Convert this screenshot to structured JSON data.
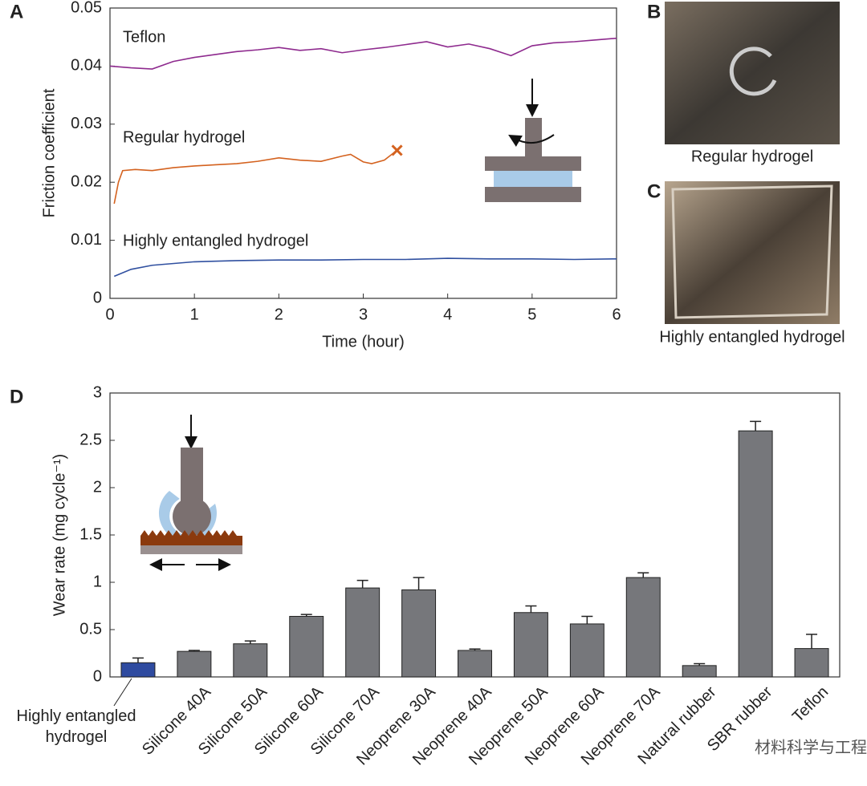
{
  "chart_data": [
    {
      "type": "line",
      "panel": "A",
      "xlabel": "Time (hour)",
      "ylabel": "Friction coefficient",
      "xlim": [
        0,
        6
      ],
      "ylim": [
        0,
        0.05
      ],
      "xticks": [
        0,
        1,
        2,
        3,
        4,
        5,
        6
      ],
      "yticks": [
        0,
        0.01,
        0.02,
        0.03,
        0.04,
        0.05
      ],
      "series": [
        {
          "name": "Teflon",
          "color": "#8e2a8e",
          "x": [
            0,
            0.25,
            0.5,
            0.75,
            1,
            1.25,
            1.5,
            1.75,
            2,
            2.25,
            2.5,
            2.75,
            3,
            3.25,
            3.5,
            3.75,
            4,
            4.25,
            4.5,
            4.75,
            5,
            5.25,
            5.5,
            5.75,
            6
          ],
          "values": [
            0.04,
            0.0397,
            0.0395,
            0.0408,
            0.0415,
            0.042,
            0.0425,
            0.0428,
            0.0432,
            0.0427,
            0.043,
            0.0423,
            0.0428,
            0.0432,
            0.0437,
            0.0442,
            0.0433,
            0.0438,
            0.043,
            0.0418,
            0.0435,
            0.044,
            0.0442,
            0.0445,
            0.0448
          ]
        },
        {
          "name": "Regular hydrogel",
          "color": "#d4621f",
          "end_marker": "x",
          "x": [
            0.05,
            0.1,
            0.15,
            0.3,
            0.5,
            0.75,
            1,
            1.25,
            1.5,
            1.75,
            2,
            2.25,
            2.5,
            2.75,
            2.85,
            3,
            3.1,
            3.25,
            3.4
          ],
          "values": [
            0.0163,
            0.02,
            0.022,
            0.0222,
            0.022,
            0.0225,
            0.0228,
            0.023,
            0.0232,
            0.0236,
            0.0242,
            0.0238,
            0.0236,
            0.0245,
            0.0248,
            0.0235,
            0.0232,
            0.0238,
            0.0255
          ]
        },
        {
          "name": "Highly entangled hydrogel",
          "color": "#3050a0",
          "x": [
            0.05,
            0.25,
            0.5,
            1,
            1.5,
            2,
            2.5,
            3,
            3.5,
            4,
            4.5,
            5,
            5.5,
            6
          ],
          "values": [
            0.0038,
            0.005,
            0.0057,
            0.0063,
            0.0065,
            0.0066,
            0.0066,
            0.0067,
            0.0067,
            0.0069,
            0.0068,
            0.0068,
            0.0067,
            0.0068
          ]
        }
      ]
    },
    {
      "type": "bar",
      "panel": "D",
      "ylabel": "Wear rate (mg cycle⁻¹)",
      "ylim": [
        0,
        3
      ],
      "yticks": [
        0,
        0.5,
        1,
        1.5,
        2,
        2.5,
        3
      ],
      "categories": [
        "Highly entangled hydrogel",
        "Silicone 40A",
        "Silicone 50A",
        "Silicone 60A",
        "Silicone 70A",
        "Neoprene 30A",
        "Neoprene 40A",
        "Neoprene 50A",
        "Neoprene 60A",
        "Neoprene 70A",
        "Natural rubber",
        "SBR rubber",
        "Teflon"
      ],
      "values": [
        0.15,
        0.27,
        0.35,
        0.64,
        0.94,
        0.92,
        0.28,
        0.68,
        0.56,
        1.05,
        0.12,
        2.6,
        0.3
      ],
      "errors": [
        0.05,
        0.01,
        0.03,
        0.02,
        0.08,
        0.13,
        0.015,
        0.07,
        0.08,
        0.05,
        0.02,
        0.1,
        0.15
      ],
      "colors": [
        "#2f4ba0",
        "#76777b",
        "#76777b",
        "#76777b",
        "#76777b",
        "#76777b",
        "#76777b",
        "#76777b",
        "#76777b",
        "#76777b",
        "#76777b",
        "#76777b",
        "#76777b"
      ]
    }
  ],
  "photos": [
    {
      "panel": "B",
      "caption": "Regular hydrogel"
    },
    {
      "panel": "C",
      "caption": "Highly entangled hydrogel"
    }
  ],
  "watermark": "材料科学与工程"
}
